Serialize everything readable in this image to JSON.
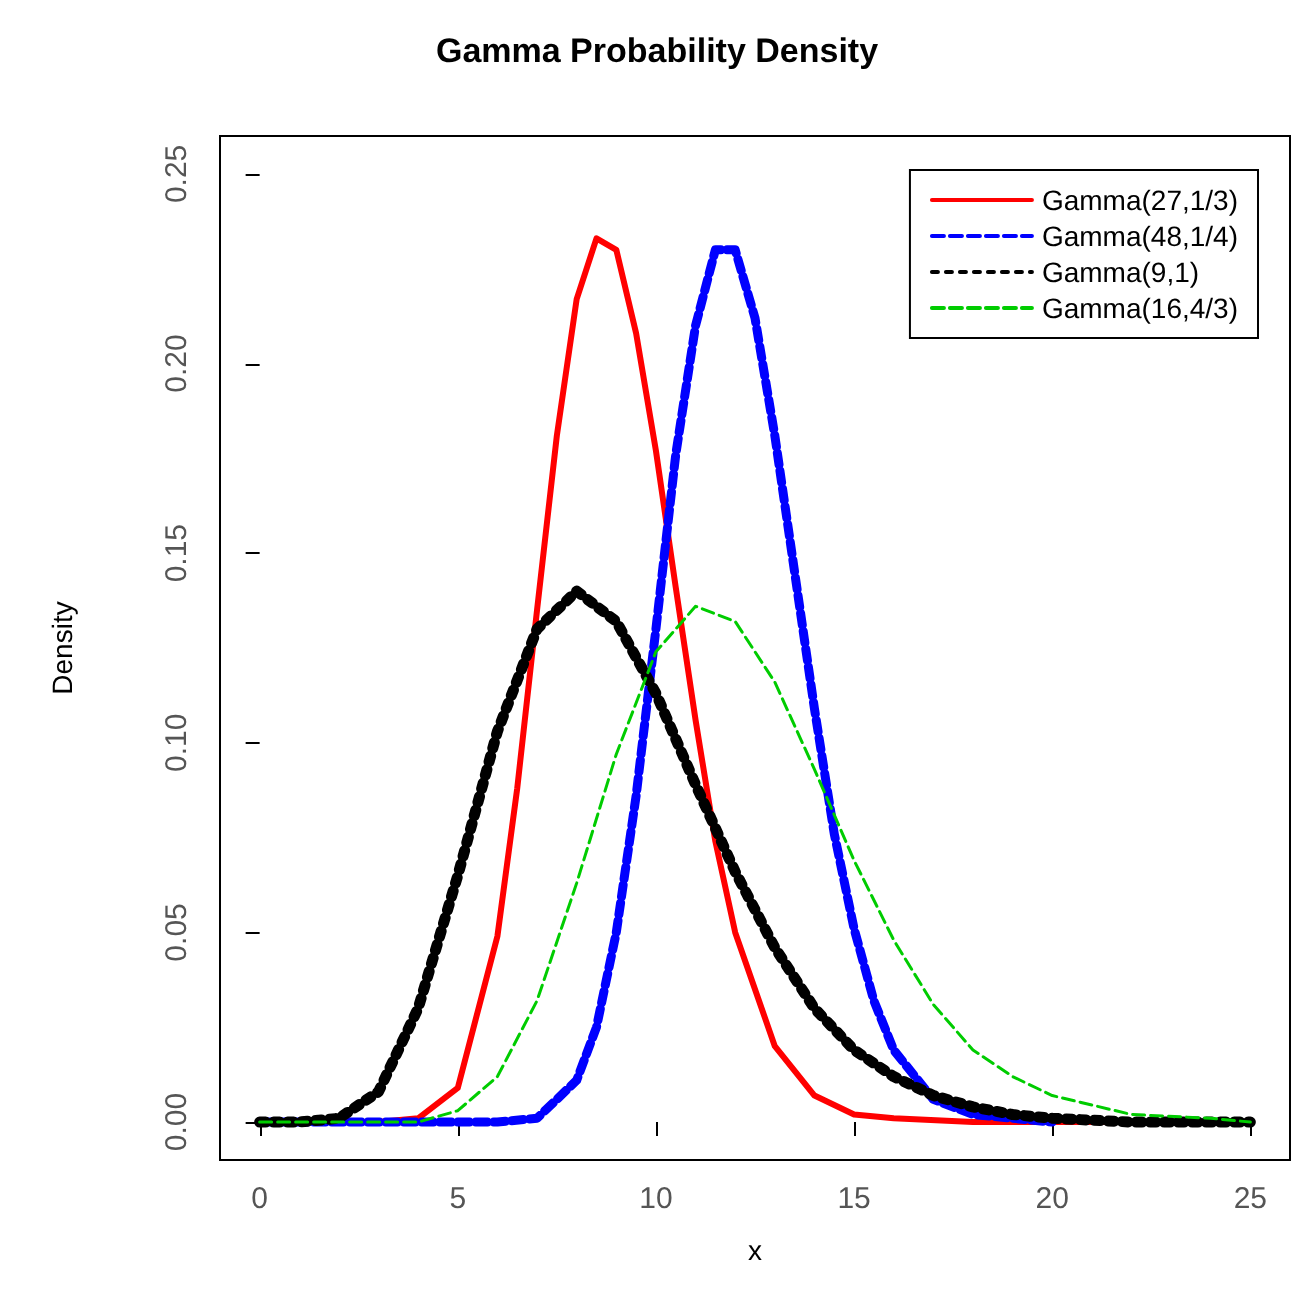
{
  "chart_data": {
    "type": "line",
    "title": "Gamma Probability Density",
    "xlabel": "x",
    "ylabel": "Density",
    "xlim": [
      -1,
      26
    ],
    "xticks": [
      0,
      5,
      10,
      15,
      20,
      25
    ],
    "ylim": [
      -0.01,
      0.26
    ],
    "yticks": [
      {
        "value": 0,
        "label": "0.00"
      },
      0.05,
      {
        "value": 0.1,
        "label": "0.10"
      },
      0.15,
      {
        "value": 0.2,
        "label": "0.20"
      },
      0.25
    ],
    "grid": false,
    "legend": "top right",
    "marker": "none",
    "series": [
      {
        "name": "Gamma(27,1/3)",
        "color": "#ff0000",
        "line_style": "solid",
        "x": [
          0,
          3,
          4,
          5,
          6,
          6.5,
          7,
          7.5,
          8,
          8.5,
          9,
          9.5,
          10,
          10.5,
          11,
          11.5,
          12,
          13,
          14,
          15,
          16,
          18,
          25
        ],
        "values": [
          0,
          0,
          0.001,
          0.009,
          0.049,
          0.088,
          0.135,
          0.181,
          0.217,
          0.233,
          0.23,
          0.208,
          0.177,
          0.141,
          0.106,
          0.074,
          0.05,
          0.02,
          0.007,
          0.002,
          0.001,
          0,
          0
        ]
      },
      {
        "name": "Gamma(48,1/4)",
        "color": "#0000ff",
        "line_style": "dashed",
        "x": [
          0,
          6,
          7,
          8,
          8.5,
          9,
          9.5,
          10,
          10.5,
          11,
          11.5,
          12,
          12.5,
          13,
          13.5,
          14,
          14.5,
          15,
          15.5,
          16,
          17,
          18,
          20
        ],
        "values": [
          0,
          0,
          0.001,
          0.011,
          0.025,
          0.05,
          0.086,
          0.13,
          0.176,
          0.21,
          0.23,
          0.23,
          0.212,
          0.181,
          0.145,
          0.109,
          0.076,
          0.051,
          0.032,
          0.019,
          0.006,
          0.002,
          0
        ]
      },
      {
        "name": "Gamma(9,1)",
        "color": "#000000",
        "line_style": "dotted",
        "x": [
          0,
          1,
          2,
          3,
          4,
          5,
          6,
          7,
          8,
          9,
          10,
          11,
          12,
          13,
          14,
          15,
          16,
          17,
          18,
          19,
          20,
          22,
          25
        ],
        "values": [
          0,
          0,
          0.001,
          0.008,
          0.03,
          0.065,
          0.103,
          0.13,
          0.14,
          0.132,
          0.113,
          0.089,
          0.066,
          0.046,
          0.03,
          0.019,
          0.012,
          0.007,
          0.004,
          0.002,
          0.001,
          0,
          0
        ]
      },
      {
        "name": "Gamma(16,4/3)",
        "color": "#00cc00",
        "line_style": "dashed",
        "x": [
          0,
          3,
          4,
          5,
          6,
          7,
          8,
          9,
          10,
          11,
          12,
          13,
          14,
          15,
          16,
          17,
          18,
          19,
          20,
          22,
          24,
          25
        ],
        "values": [
          0,
          0,
          0,
          0.003,
          0.012,
          0.032,
          0.063,
          0.097,
          0.124,
          0.136,
          0.132,
          0.116,
          0.093,
          0.069,
          0.048,
          0.031,
          0.019,
          0.012,
          0.007,
          0.002,
          0.001,
          0
        ]
      }
    ]
  }
}
